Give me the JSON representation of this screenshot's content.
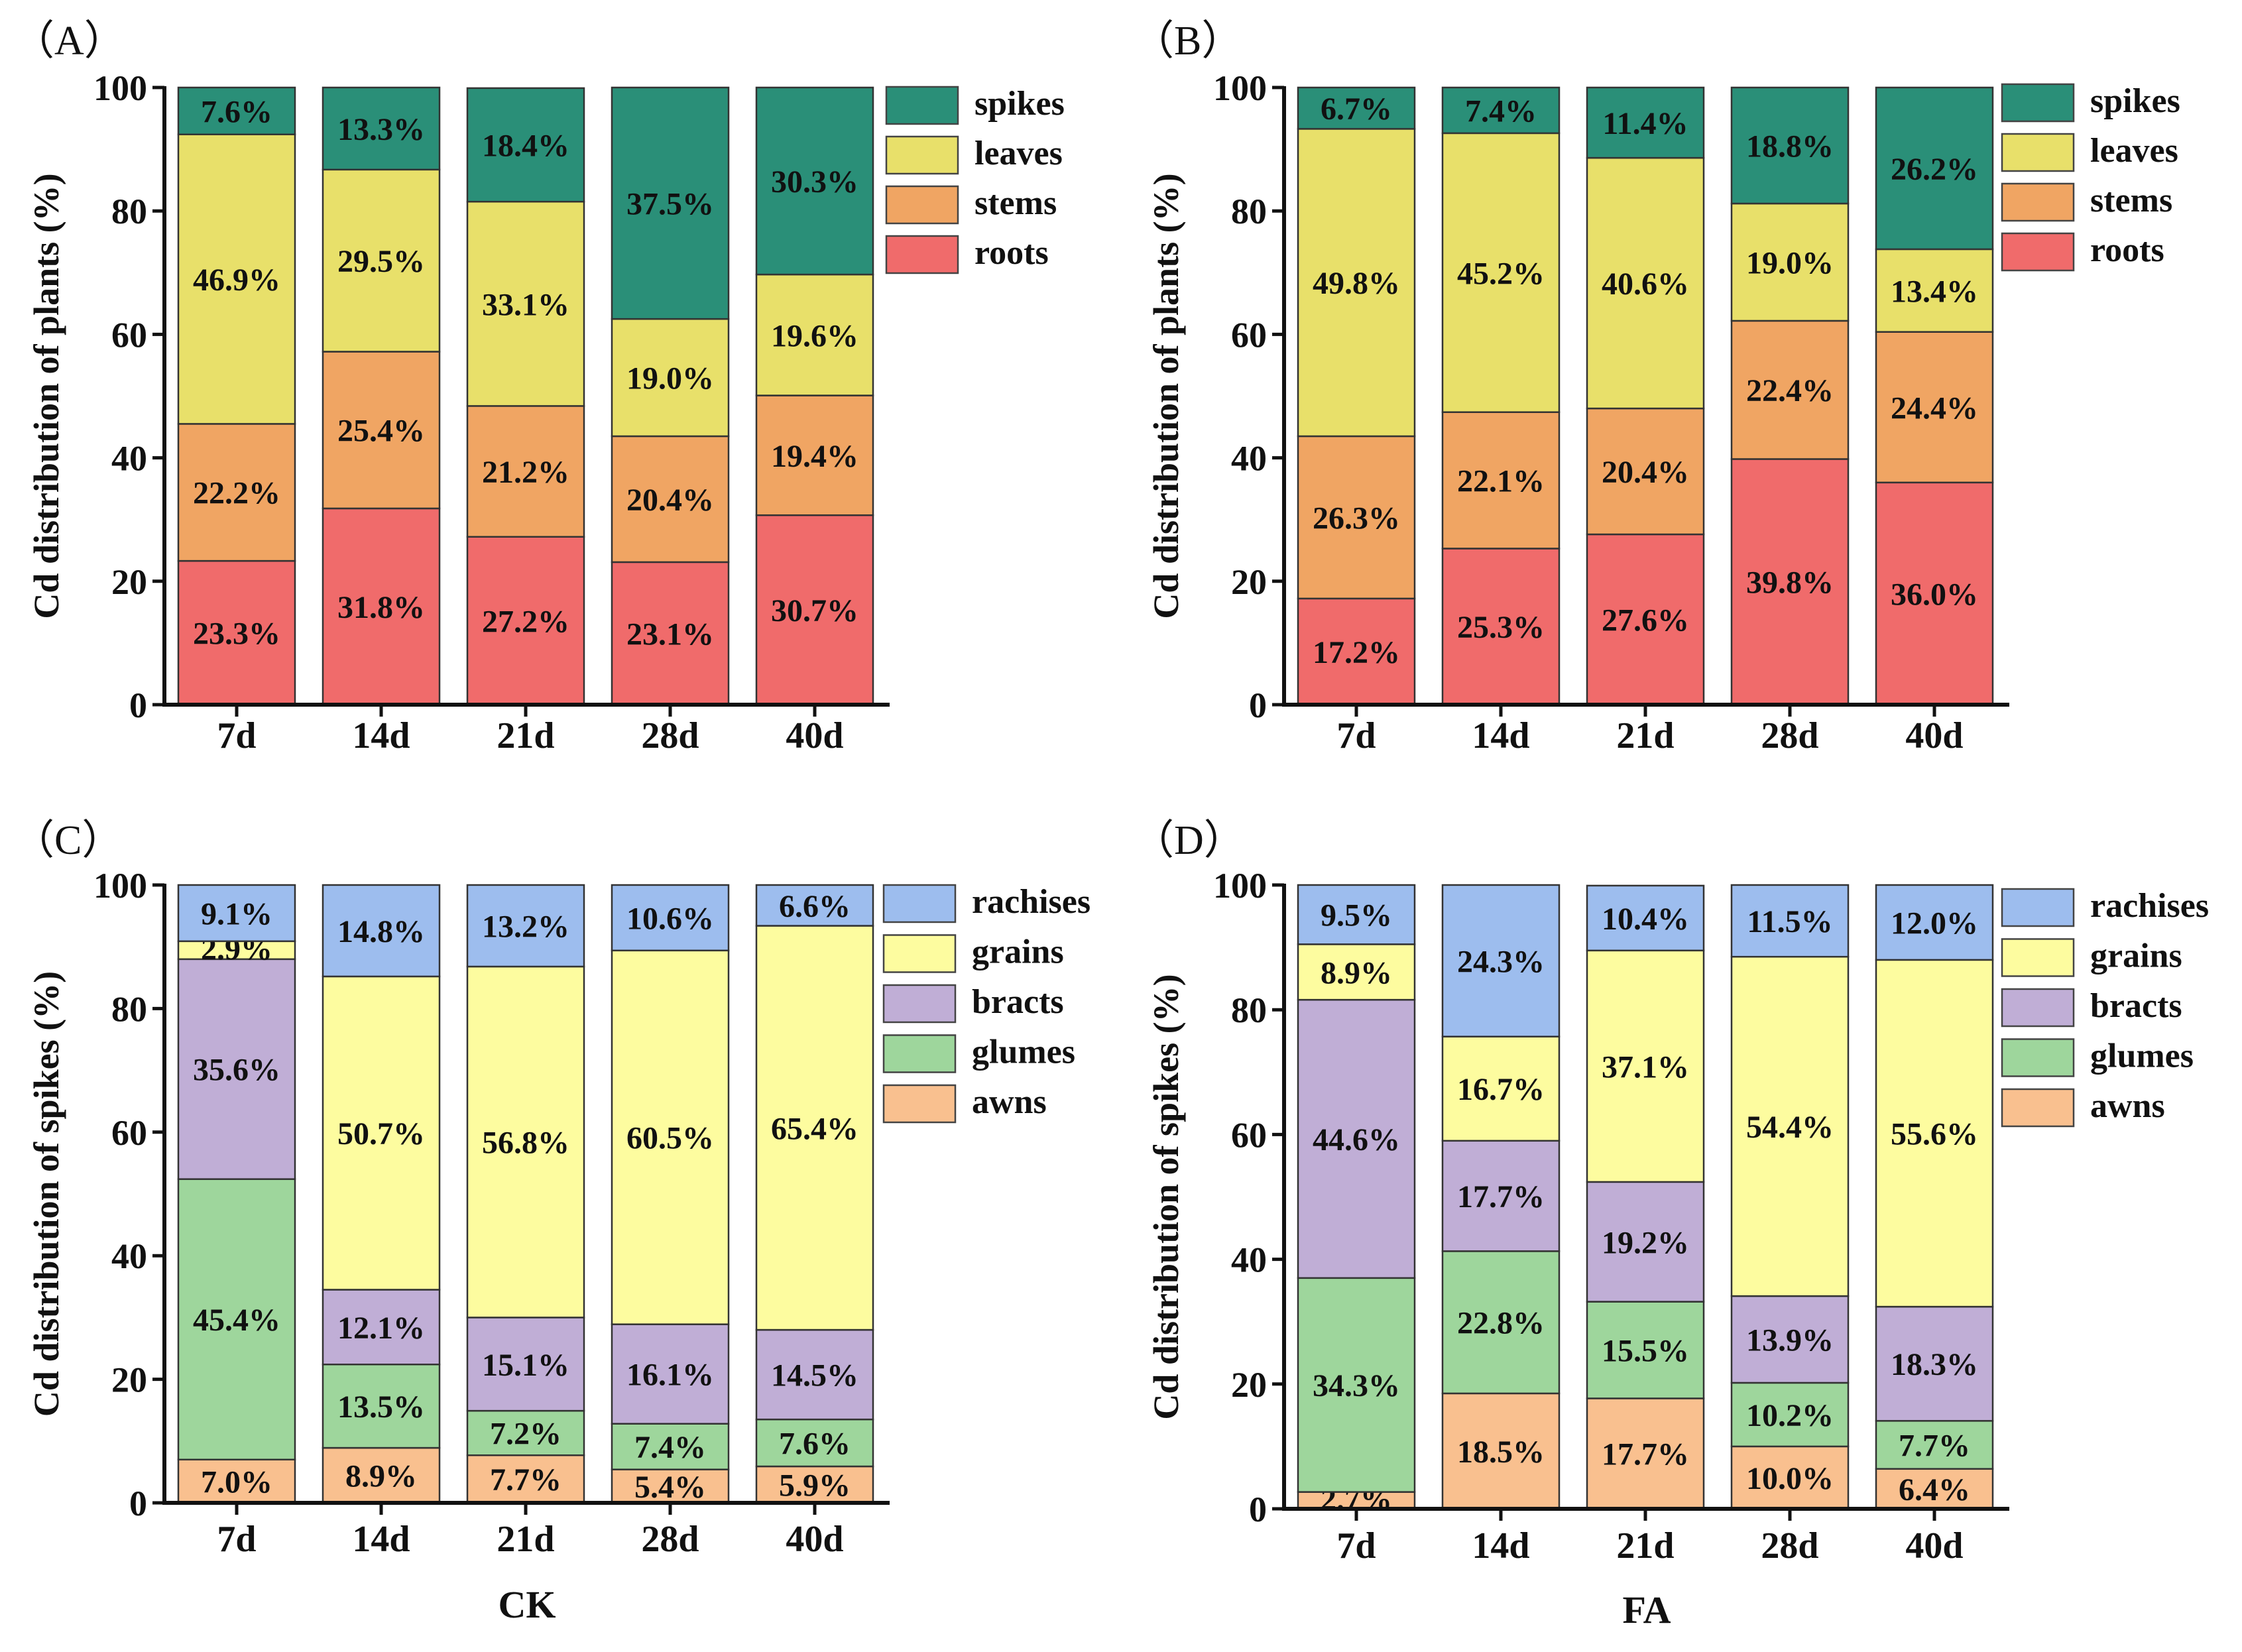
{
  "chart_data": [
    {
      "type": "bar",
      "stacked": true,
      "panel_label": "（A）",
      "title": "",
      "xlabel": "",
      "ylabel": "Cd distribution of plants (%)",
      "ylim": [
        0,
        100
      ],
      "yticks": [
        "0",
        "20",
        "40",
        "60",
        "80",
        "100"
      ],
      "categories": [
        "7d",
        "14d",
        "21d",
        "28d",
        "40d"
      ],
      "legend_position": "top-right",
      "series": [
        {
          "name": "roots",
          "color": "#f06b6b",
          "values": [
            23.3,
            31.8,
            27.2,
            23.1,
            30.7
          ]
        },
        {
          "name": "stems",
          "color": "#f0a563",
          "values": [
            22.2,
            25.4,
            21.2,
            20.4,
            19.4
          ]
        },
        {
          "name": "leaves",
          "color": "#e8e06a",
          "values": [
            46.9,
            29.5,
            33.1,
            19.0,
            19.6
          ]
        },
        {
          "name": "spikes",
          "color": "#2a8f78",
          "values": [
            7.6,
            13.3,
            18.4,
            37.5,
            30.3
          ]
        }
      ]
    },
    {
      "type": "bar",
      "stacked": true,
      "panel_label": "（B）",
      "title": "",
      "xlabel": "",
      "ylabel": "Cd distribution of plants (%)",
      "ylim": [
        0,
        100
      ],
      "yticks": [
        "0",
        "20",
        "40",
        "60",
        "80",
        "100"
      ],
      "categories": [
        "7d",
        "14d",
        "21d",
        "28d",
        "40d"
      ],
      "legend_position": "top-right",
      "series": [
        {
          "name": "roots",
          "color": "#f06b6b",
          "values": [
            17.2,
            25.3,
            27.6,
            39.8,
            36.0
          ]
        },
        {
          "name": "stems",
          "color": "#f0a563",
          "values": [
            26.3,
            22.1,
            20.4,
            22.4,
            24.4
          ]
        },
        {
          "name": "leaves",
          "color": "#e8e06a",
          "values": [
            49.8,
            45.2,
            40.6,
            19.0,
            13.4
          ]
        },
        {
          "name": "spikes",
          "color": "#2a8f78",
          "values": [
            6.7,
            7.4,
            11.4,
            18.8,
            26.2
          ]
        }
      ]
    },
    {
      "type": "bar",
      "stacked": true,
      "panel_label": "（C）",
      "title": "",
      "xlabel": "CK",
      "ylabel": "Cd distribution of spikes (%)",
      "ylim": [
        0,
        100
      ],
      "yticks": [
        "0",
        "20",
        "40",
        "60",
        "80",
        "100"
      ],
      "categories": [
        "7d",
        "14d",
        "21d",
        "28d",
        "40d"
      ],
      "legend_position": "top-right",
      "series": [
        {
          "name": "awns",
          "color": "#f9c08f",
          "values": [
            7.0,
            8.9,
            7.7,
            5.4,
            5.9
          ]
        },
        {
          "name": "glumes",
          "color": "#9ed69c",
          "values": [
            45.4,
            13.5,
            7.2,
            7.4,
            7.6
          ]
        },
        {
          "name": "bracts",
          "color": "#c0aed6",
          "values": [
            35.6,
            12.1,
            15.1,
            16.1,
            14.5
          ]
        },
        {
          "name": "grains",
          "color": "#fdfc9f",
          "values": [
            2.9,
            50.7,
            56.8,
            60.5,
            65.4
          ]
        },
        {
          "name": "rachises",
          "color": "#9dbdee",
          "values": [
            9.1,
            14.8,
            13.2,
            10.6,
            6.6
          ]
        }
      ]
    },
    {
      "type": "bar",
      "stacked": true,
      "panel_label": "（D）",
      "title": "",
      "xlabel": "FA",
      "ylabel": "Cd distribution of spikes (%)",
      "ylim": [
        0,
        100
      ],
      "yticks": [
        "0",
        "20",
        "40",
        "60",
        "80",
        "100"
      ],
      "categories": [
        "7d",
        "14d",
        "21d",
        "28d",
        "40d"
      ],
      "legend_position": "top-right",
      "series": [
        {
          "name": "awns",
          "color": "#f9c08f",
          "values": [
            2.7,
            18.5,
            17.7,
            10.0,
            6.4
          ]
        },
        {
          "name": "glumes",
          "color": "#9ed69c",
          "values": [
            34.3,
            22.8,
            15.5,
            10.2,
            7.7
          ]
        },
        {
          "name": "bracts",
          "color": "#c0aed6",
          "values": [
            44.6,
            17.7,
            19.2,
            13.9,
            18.3
          ]
        },
        {
          "name": "grains",
          "color": "#fdfc9f",
          "values": [
            8.9,
            16.7,
            37.1,
            54.4,
            55.6
          ]
        },
        {
          "name": "rachises",
          "color": "#9dbdee",
          "values": [
            9.5,
            24.3,
            10.4,
            11.5,
            12.0
          ]
        }
      ]
    }
  ]
}
